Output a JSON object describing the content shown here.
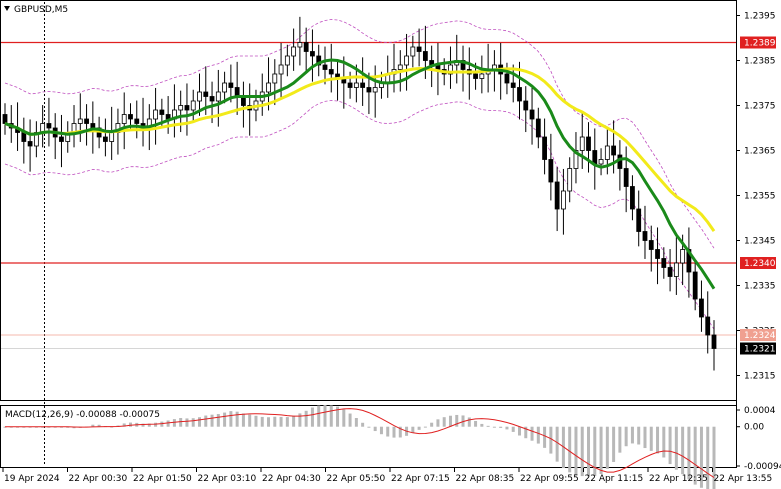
{
  "header": {
    "symbol_label": "GBPUSD,M5"
  },
  "macd": {
    "label": "MACD(12,26,9) -0.00088 -0.00075",
    "axis_labels": [
      "0.0004",
      "0.00",
      "-0.00094"
    ]
  },
  "price_axis": {
    "labels": [
      "1.2395",
      "1.2385",
      "1.2375",
      "1.2365",
      "1.2355",
      "1.2345",
      "1.2335",
      "1.2325",
      "1.2315"
    ]
  },
  "levels": {
    "resistance_1": "1.2389",
    "resistance_2": "1.2340",
    "faint_level": "1.2324",
    "current_price": "1.2321"
  },
  "time_axis": {
    "labels": [
      "19 Apr 2024",
      "22 Apr 00:30",
      "22 Apr 01:50",
      "22 Apr 03:10",
      "22 Apr 04:30",
      "22 Apr 05:50",
      "22 Apr 07:15",
      "22 Apr 08:35",
      "22 Apr 09:55",
      "22 Apr 11:15",
      "22 Apr 12:35",
      "22 Apr 13:55"
    ]
  },
  "colors": {
    "background": "#ffffff",
    "bull_candle": "#000000",
    "bear_candle": "#000000",
    "ma_fast": "#1a8a1a",
    "ma_slow": "#f2ea1a",
    "envelope": "#c050c0",
    "level_line": "#e02020",
    "level_tag": "#e02020",
    "price_tag": "#000000",
    "macd_hist": "#b8b8b8",
    "macd_signal": "#e02020"
  },
  "chart_data": {
    "type": "candlestick",
    "symbol": "GBPUSD",
    "timeframe": "M5",
    "y_range": [
      1.231,
      1.2398
    ],
    "closes": [
      1.2371,
      1.237,
      1.2369,
      1.2367,
      1.2366,
      1.2369,
      1.2371,
      1.237,
      1.2368,
      1.2367,
      1.2369,
      1.2371,
      1.2372,
      1.2371,
      1.237,
      1.2368,
      1.2367,
      1.2369,
      1.2371,
      1.2373,
      1.2372,
      1.2371,
      1.237,
      1.2372,
      1.2374,
      1.2373,
      1.2372,
      1.2374,
      1.2375,
      1.2374,
      1.2376,
      1.2378,
      1.2377,
      1.2376,
      1.2378,
      1.238,
      1.2379,
      1.2377,
      1.2375,
      1.2374,
      1.2376,
      1.2378,
      1.238,
      1.2382,
      1.2384,
      1.2386,
      1.2388,
      1.2389,
      1.2387,
      1.2386,
      1.2384,
      1.2383,
      1.2382,
      1.2381,
      1.238,
      1.2379,
      1.238,
      1.2379,
      1.2378,
      1.2379,
      1.238,
      1.2382,
      1.2383,
      1.2384,
      1.2386,
      1.2388,
      1.2387,
      1.2385,
      1.2384,
      1.2383,
      1.2382,
      1.2384,
      1.2385,
      1.2383,
      1.2382,
      1.2381,
      1.2382,
      1.2383,
      1.2384,
      1.2382,
      1.238,
      1.2379,
      1.2376,
      1.2374,
      1.2372,
      1.2368,
      1.2363,
      1.2358,
      1.2352,
      1.2356,
      1.2361,
      1.2365,
      1.2368,
      1.2365,
      1.2362,
      1.2363,
      1.2366,
      1.2364,
      1.2361,
      1.2357,
      1.2352,
      1.2347,
      1.2345,
      1.2343,
      1.2341,
      1.2339,
      1.2337,
      1.234,
      1.2343,
      1.2338,
      1.2332,
      1.2328,
      1.2324,
      1.2321
    ],
    "series": [
      {
        "name": "MA fast"
      },
      {
        "name": "MA slow"
      }
    ],
    "horizontal_levels": [
      1.2389,
      1.234,
      1.2324
    ],
    "current_price": 1.2321,
    "macd_values": {
      "macd": -0.00088,
      "signal": -0.00075
    }
  }
}
